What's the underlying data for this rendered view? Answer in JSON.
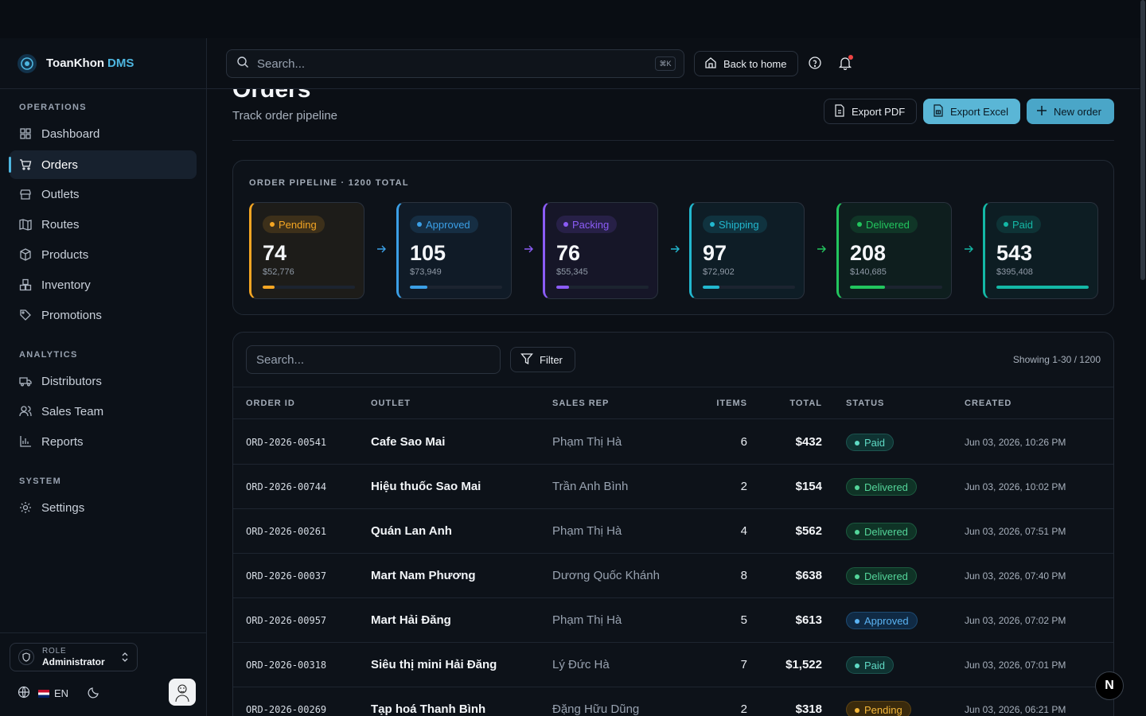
{
  "brand": {
    "name": "ToanKhon",
    "accent": "DMS"
  },
  "sidebar": {
    "sections": [
      {
        "label": "OPERATIONS"
      },
      {
        "label": "ANALYTICS"
      },
      {
        "label": "SYSTEM"
      }
    ],
    "items": [
      {
        "label": "Dashboard",
        "icon": "dashboard-icon"
      },
      {
        "label": "Orders",
        "icon": "cart-icon",
        "active": true
      },
      {
        "label": "Outlets",
        "icon": "store-icon"
      },
      {
        "label": "Routes",
        "icon": "map-icon"
      },
      {
        "label": "Products",
        "icon": "package-icon"
      },
      {
        "label": "Inventory",
        "icon": "boxes-icon"
      },
      {
        "label": "Promotions",
        "icon": "tag-icon"
      },
      {
        "label": "Distributors",
        "icon": "truck-icon"
      },
      {
        "label": "Sales Team",
        "icon": "users-icon"
      },
      {
        "label": "Reports",
        "icon": "bar-chart-icon"
      },
      {
        "label": "Settings",
        "icon": "gear-icon"
      }
    ],
    "role": {
      "label": "ROLE",
      "value": "Administrator"
    },
    "language": "EN"
  },
  "header": {
    "search_placeholder": "Search...",
    "shortcut": "⌘K",
    "back_home": "Back to home"
  },
  "page": {
    "title": "Orders",
    "subtitle": "Track order pipeline",
    "export_pdf": "Export PDF",
    "export_excel": "Export Excel",
    "new_order": "New order"
  },
  "pipeline": {
    "title": "ORDER PIPELINE · 1200 TOTAL",
    "stages": [
      {
        "label": "Pending",
        "count": "74",
        "amount": "$52,776",
        "progress": 0.13,
        "color": "#f5a623"
      },
      {
        "label": "Approved",
        "count": "105",
        "amount": "$73,949",
        "progress": 0.19,
        "color": "#3b9fe6"
      },
      {
        "label": "Packing",
        "count": "76",
        "amount": "$55,345",
        "progress": 0.14,
        "color": "#8b5cf6"
      },
      {
        "label": "Shipping",
        "count": "97",
        "amount": "$72,902",
        "progress": 0.18,
        "color": "#22b8cf"
      },
      {
        "label": "Delivered",
        "count": "208",
        "amount": "$140,685",
        "progress": 0.38,
        "color": "#22c55e"
      },
      {
        "label": "Paid",
        "count": "543",
        "amount": "$395,408",
        "progress": 1.0,
        "color": "#14b8a6"
      }
    ]
  },
  "table": {
    "search_placeholder": "Search...",
    "filter_label": "Filter",
    "showing": "Showing 1-30 / 1200",
    "columns": [
      "ORDER ID",
      "OUTLET",
      "SALES REP",
      "ITEMS",
      "TOTAL",
      "STATUS",
      "CREATED"
    ],
    "rows": [
      {
        "id": "ORD-2026-00541",
        "outlet": "Cafe Sao Mai",
        "rep": "Phạm Thị Hà",
        "items": "6",
        "total": "$432",
        "status": "Paid",
        "created": "Jun 03, 2026, 10:26 PM"
      },
      {
        "id": "ORD-2026-00744",
        "outlet": "Hiệu thuốc Sao Mai",
        "rep": "Trần Anh Bình",
        "items": "2",
        "total": "$154",
        "status": "Delivered",
        "created": "Jun 03, 2026, 10:02 PM"
      },
      {
        "id": "ORD-2026-00261",
        "outlet": "Quán Lan Anh",
        "rep": "Phạm Thị Hà",
        "items": "4",
        "total": "$562",
        "status": "Delivered",
        "created": "Jun 03, 2026, 07:51 PM"
      },
      {
        "id": "ORD-2026-00037",
        "outlet": "Mart Nam Phương",
        "rep": "Dương Quốc Khánh",
        "items": "8",
        "total": "$638",
        "status": "Delivered",
        "created": "Jun 03, 2026, 07:40 PM"
      },
      {
        "id": "ORD-2026-00957",
        "outlet": "Mart Hải Đăng",
        "rep": "Phạm Thị Hà",
        "items": "5",
        "total": "$613",
        "status": "Approved",
        "created": "Jun 03, 2026, 07:02 PM"
      },
      {
        "id": "ORD-2026-00318",
        "outlet": "Siêu thị mini Hải Đăng",
        "rep": "Lý Đức Hà",
        "items": "7",
        "total": "$1,522",
        "status": "Paid",
        "created": "Jun 03, 2026, 07:01 PM"
      },
      {
        "id": "ORD-2026-00269",
        "outlet": "Tạp hoá Thanh Bình",
        "rep": "Đặng Hữu Dũng",
        "items": "2",
        "total": "$318",
        "status": "Pending",
        "created": "Jun 03, 2026, 06:21 PM"
      }
    ]
  },
  "floating_badge": "N"
}
